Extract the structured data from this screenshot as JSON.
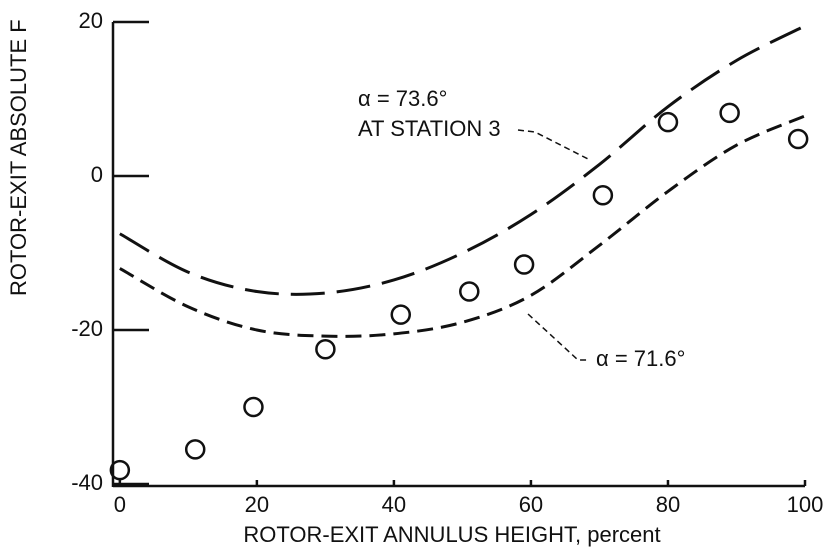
{
  "chart_data": {
    "type": "line",
    "xlabel": "ROTOR-EXIT ANNULUS HEIGHT, percent",
    "ylabel": "ROTOR-EXIT ABSOLUTE F",
    "annotations": [
      "α = 73.6°",
      "AT STATION 3",
      "α = 71.6°"
    ],
    "xlim": [
      -1,
      100
    ],
    "ylim": [
      -40,
      20
    ],
    "xticks": [
      0,
      20,
      40,
      60,
      80,
      100
    ],
    "yticks": [
      -40,
      -20,
      0,
      20
    ],
    "series": [
      {
        "type": "line",
        "dash": "long",
        "color": "#111",
        "x": [
          0,
          10,
          20,
          30,
          40,
          50,
          60,
          70,
          80,
          90,
          100
        ],
        "values": [
          -7.5,
          -12.5,
          -15,
          -15.2,
          -13.5,
          -10,
          -5,
          1.5,
          9,
          15,
          19.5
        ]
      },
      {
        "type": "line",
        "dash": "short",
        "color": "#111",
        "x": [
          0,
          10,
          20,
          30,
          40,
          50,
          60,
          70,
          80,
          90,
          100
        ],
        "values": [
          -12,
          -17,
          -20,
          -20.8,
          -20.5,
          -19,
          -15.5,
          -9,
          -2,
          4,
          7.8
        ]
      },
      {
        "type": "scatter",
        "color": "#111",
        "x": [
          0,
          11,
          19.5,
          30,
          41,
          51,
          59,
          70.5,
          80,
          89,
          99
        ],
        "values": [
          -38.2,
          -35.5,
          -30,
          -22.5,
          -18,
          -15,
          -11.5,
          -2.5,
          7,
          8.2,
          4.8
        ]
      }
    ]
  }
}
